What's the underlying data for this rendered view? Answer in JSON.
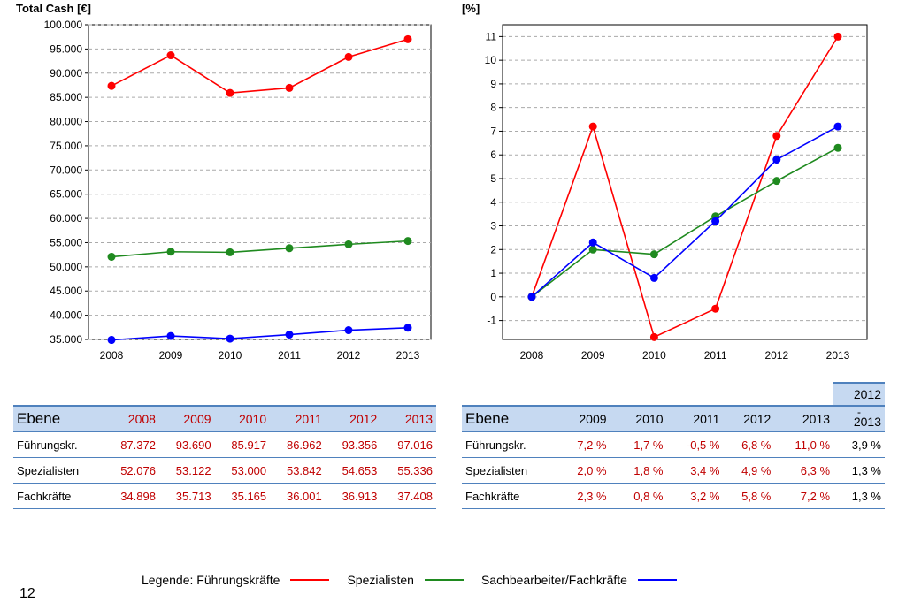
{
  "chart_data": [
    {
      "type": "line",
      "title": "Total Cash [€]",
      "x": [
        "2008",
        "2009",
        "2010",
        "2011",
        "2012",
        "2013"
      ],
      "ylim": [
        35000,
        100000
      ],
      "yticks": [
        "100.000",
        "95.000",
        "90.000",
        "85.000",
        "80.000",
        "75.000",
        "70.000",
        "65.000",
        "60.000",
        "55.000",
        "50.000",
        "45.000",
        "40.000",
        "35.000"
      ],
      "grid": true,
      "series": [
        {
          "name": "Führungskräfte",
          "color": "#ff0000",
          "values": [
            87372,
            93690,
            85917,
            86962,
            93356,
            97016
          ]
        },
        {
          "name": "Spezialisten",
          "color": "#1f8a1f",
          "values": [
            52076,
            53122,
            53000,
            53842,
            54653,
            55336
          ]
        },
        {
          "name": "Sachbearbeiter/Fachkräfte",
          "color": "#0000ff",
          "values": [
            34898,
            35713,
            35165,
            36001,
            36913,
            37408
          ]
        }
      ]
    },
    {
      "type": "line",
      "title": "[%]",
      "x": [
        "2008",
        "2009",
        "2010",
        "2011",
        "2012",
        "2013"
      ],
      "ylim": [
        -1.8,
        11.5
      ],
      "yticks": [
        "11",
        "10",
        "9",
        "8",
        "7",
        "6",
        "5",
        "4",
        "3",
        "2",
        "1",
        "0",
        "-1"
      ],
      "grid": true,
      "series": [
        {
          "name": "Führungskräfte",
          "color": "#ff0000",
          "values": [
            0,
            7.2,
            -1.7,
            -0.5,
            6.8,
            11.0
          ]
        },
        {
          "name": "Spezialisten",
          "color": "#1f8a1f",
          "values": [
            0,
            2.0,
            1.8,
            3.4,
            4.9,
            6.3
          ]
        },
        {
          "name": "Sachbearbeiter/Fachkräfte",
          "color": "#0000ff",
          "values": [
            0,
            2.3,
            0.8,
            3.2,
            5.8,
            7.2
          ]
        }
      ]
    }
  ],
  "table1": {
    "header_label": "Ebene",
    "years": [
      "2008",
      "2009",
      "2010",
      "2011",
      "2012",
      "2013"
    ],
    "rows": [
      {
        "label": "Führungskr.",
        "values": [
          "87.372",
          "93.690",
          "85.917",
          "86.962",
          "93.356",
          "97.016"
        ]
      },
      {
        "label": "Spezialisten",
        "values": [
          "52.076",
          "53.122",
          "53.000",
          "53.842",
          "54.653",
          "55.336"
        ]
      },
      {
        "label": "Fachkräfte",
        "values": [
          "34.898",
          "35.713",
          "35.165",
          "36.001",
          "36.913",
          "37.408"
        ]
      }
    ]
  },
  "table2": {
    "header_label": "Ebene",
    "years": [
      "2009",
      "2010",
      "2011",
      "2012",
      "2013"
    ],
    "span_top": "2012",
    "span_dash": "-",
    "span_bottom": "2013",
    "rows": [
      {
        "label": "Führungskr.",
        "values": [
          "7,2 %",
          "-1,7 %",
          "-0,5 %",
          "6,8 %",
          "11,0 %"
        ],
        "span": "3,9 %"
      },
      {
        "label": "Spezialisten",
        "values": [
          "2,0 %",
          "1,8 %",
          "3,4 %",
          "4,9 %",
          "6,3 %"
        ],
        "span": "1,3 %"
      },
      {
        "label": "Fachkräfte",
        "values": [
          "2,3 %",
          "0,8 %",
          "3,2 %",
          "5,8 %",
          "7,2 %"
        ],
        "span": "1,3 %"
      }
    ]
  },
  "legend": {
    "prefix": "Legende: Führungskräfte",
    "item2": "Spezialisten",
    "item3": "Sachbearbeiter/Fachkräfte",
    "colors": [
      "#ff0000",
      "#1f8a1f",
      "#0000ff"
    ]
  },
  "page_number": "12"
}
